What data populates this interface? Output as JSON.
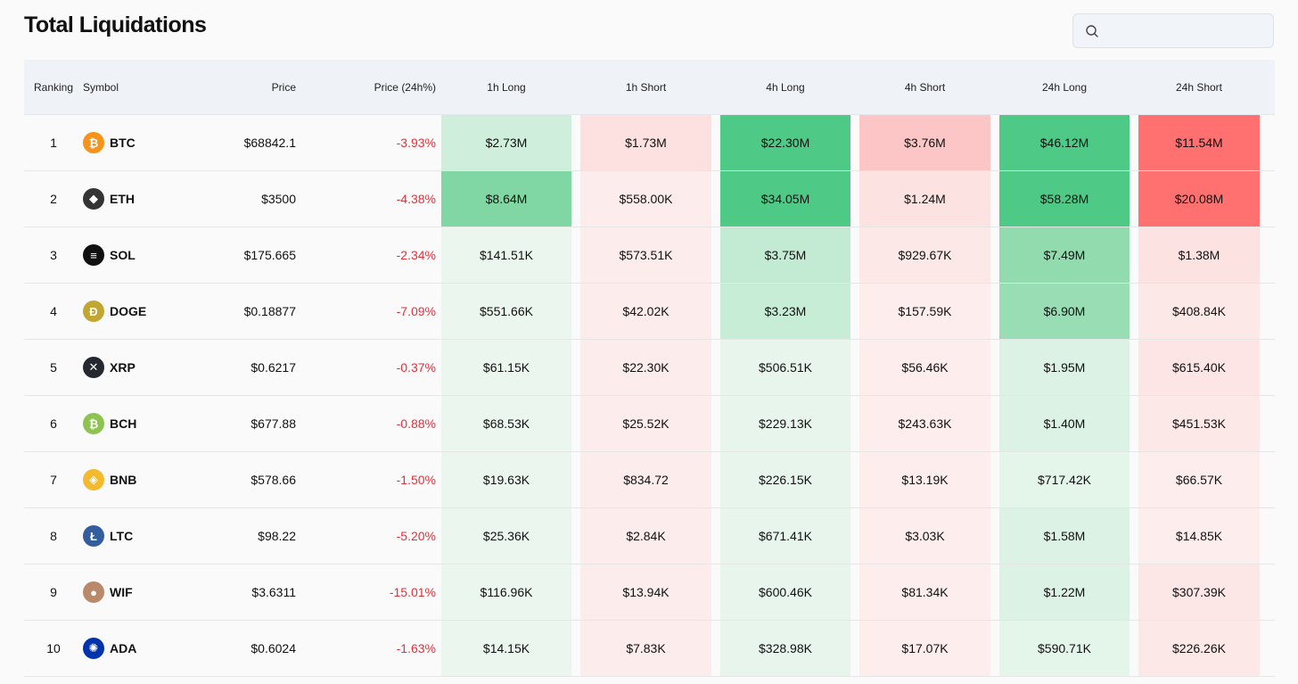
{
  "page": {
    "title": "Total Liquidations"
  },
  "search": {
    "placeholder": "",
    "icon": "search-icon"
  },
  "columns": {
    "ranking": "Ranking",
    "symbol": "Symbol",
    "price": "Price",
    "change": "Price (24h%)",
    "h1_long": "1h Long",
    "h1_short": "1h Short",
    "h4_long": "4h Long",
    "h4_short": "4h Short",
    "h24_long": "24h Long",
    "h24_short": "24h Short"
  },
  "rows": [
    {
      "rank": "1",
      "symbol": "BTC",
      "icon": "bitcoin-icon",
      "icon_color": "#f7931a",
      "price": "$68842.1",
      "change": "-3.93%",
      "h1_long": "$2.73M",
      "h1_short": "$1.73M",
      "h4_long": "$22.30M",
      "h4_short": "$3.76M",
      "h24_long": "$46.12M",
      "h24_short": "$11.54M"
    },
    {
      "rank": "2",
      "symbol": "ETH",
      "icon": "ethereum-icon",
      "icon_color": "#343434",
      "price": "$3500",
      "change": "-4.38%",
      "h1_long": "$8.64M",
      "h1_short": "$558.00K",
      "h4_long": "$34.05M",
      "h4_short": "$1.24M",
      "h24_long": "$58.28M",
      "h24_short": "$20.08M"
    },
    {
      "rank": "3",
      "symbol": "SOL",
      "icon": "solana-icon",
      "icon_color": "#111111",
      "price": "$175.665",
      "change": "-2.34%",
      "h1_long": "$141.51K",
      "h1_short": "$573.51K",
      "h4_long": "$3.75M",
      "h4_short": "$929.67K",
      "h24_long": "$7.49M",
      "h24_short": "$1.38M"
    },
    {
      "rank": "4",
      "symbol": "DOGE",
      "icon": "dogecoin-icon",
      "icon_color": "#c2a633",
      "price": "$0.18877",
      "change": "-7.09%",
      "h1_long": "$551.66K",
      "h1_short": "$42.02K",
      "h4_long": "$3.23M",
      "h4_short": "$157.59K",
      "h24_long": "$6.90M",
      "h24_short": "$408.84K"
    },
    {
      "rank": "5",
      "symbol": "XRP",
      "icon": "xrp-icon",
      "icon_color": "#23292f",
      "price": "$0.6217",
      "change": "-0.37%",
      "h1_long": "$61.15K",
      "h1_short": "$22.30K",
      "h4_long": "$506.51K",
      "h4_short": "$56.46K",
      "h24_long": "$1.95M",
      "h24_short": "$615.40K"
    },
    {
      "rank": "6",
      "symbol": "BCH",
      "icon": "bitcoin-cash-icon",
      "icon_color": "#8dc351",
      "price": "$677.88",
      "change": "-0.88%",
      "h1_long": "$68.53K",
      "h1_short": "$25.52K",
      "h4_long": "$229.13K",
      "h4_short": "$243.63K",
      "h24_long": "$1.40M",
      "h24_short": "$451.53K"
    },
    {
      "rank": "7",
      "symbol": "BNB",
      "icon": "bnb-icon",
      "icon_color": "#f3ba2f",
      "price": "$578.66",
      "change": "-1.50%",
      "h1_long": "$19.63K",
      "h1_short": "$834.72",
      "h4_long": "$226.15K",
      "h4_short": "$13.19K",
      "h24_long": "$717.42K",
      "h24_short": "$66.57K"
    },
    {
      "rank": "8",
      "symbol": "LTC",
      "icon": "litecoin-icon",
      "icon_color": "#345d9d",
      "price": "$98.22",
      "change": "-5.20%",
      "h1_long": "$25.36K",
      "h1_short": "$2.84K",
      "h4_long": "$671.41K",
      "h4_short": "$3.03K",
      "h24_long": "$1.58M",
      "h24_short": "$14.85K"
    },
    {
      "rank": "9",
      "symbol": "WIF",
      "icon": "dogwifhat-icon",
      "icon_color": "#b9896a",
      "price": "$3.6311",
      "change": "-15.01%",
      "h1_long": "$116.96K",
      "h1_short": "$13.94K",
      "h4_long": "$600.46K",
      "h4_short": "$81.34K",
      "h24_long": "$1.22M",
      "h24_short": "$307.39K"
    },
    {
      "rank": "10",
      "symbol": "ADA",
      "icon": "cardano-icon",
      "icon_color": "#0033ad",
      "price": "$0.6024",
      "change": "-1.63%",
      "h1_long": "$14.15K",
      "h1_short": "$7.83K",
      "h4_long": "$328.98K",
      "h4_short": "$17.07K",
      "h24_long": "$590.71K",
      "h24_short": "$226.26K"
    }
  ],
  "heat": {
    "h1_long": [
      "#cfeedb",
      "#80d7a3",
      "#ebf6ef",
      "#ebf6ef",
      "#ebf6ef",
      "#ebf6ef",
      "#ebf6ef",
      "#ebf6ef",
      "#ebf6ef",
      "#ebf6ef"
    ],
    "h1_short": [
      "#fde0e0",
      "#fcecec",
      "#fcecec",
      "#fcecec",
      "#fcecec",
      "#fcecec",
      "#fcecec",
      "#fcecec",
      "#fcecec",
      "#fcecec"
    ],
    "h4_long": [
      "#4fca86",
      "#4fca86",
      "#c3ebd3",
      "#c8edd6",
      "#e7f5ec",
      "#e7f5ec",
      "#e7f5ec",
      "#e7f5ec",
      "#e7f5ec",
      "#e7f5ec"
    ],
    "h4_short": [
      "#fdc6c6",
      "#fde2e2",
      "#fde8e8",
      "#fdeded",
      "#fdeded",
      "#fdeded",
      "#fdeded",
      "#fdeded",
      "#fdeded",
      "#fdeded"
    ],
    "h24_long": [
      "#4fca86",
      "#4fca86",
      "#91dbae",
      "#98ddb3",
      "#dcf2e4",
      "#dcf2e4",
      "#e4f5ea",
      "#dcf2e4",
      "#dcf2e4",
      "#e4f5ea"
    ],
    "h24_short": [
      "#ff7070",
      "#ff7070",
      "#fde2e2",
      "#fde8e8",
      "#fde5e5",
      "#fde8e8",
      "#fdeded",
      "#fdeded",
      "#fde6e6",
      "#fde8e8"
    ]
  }
}
